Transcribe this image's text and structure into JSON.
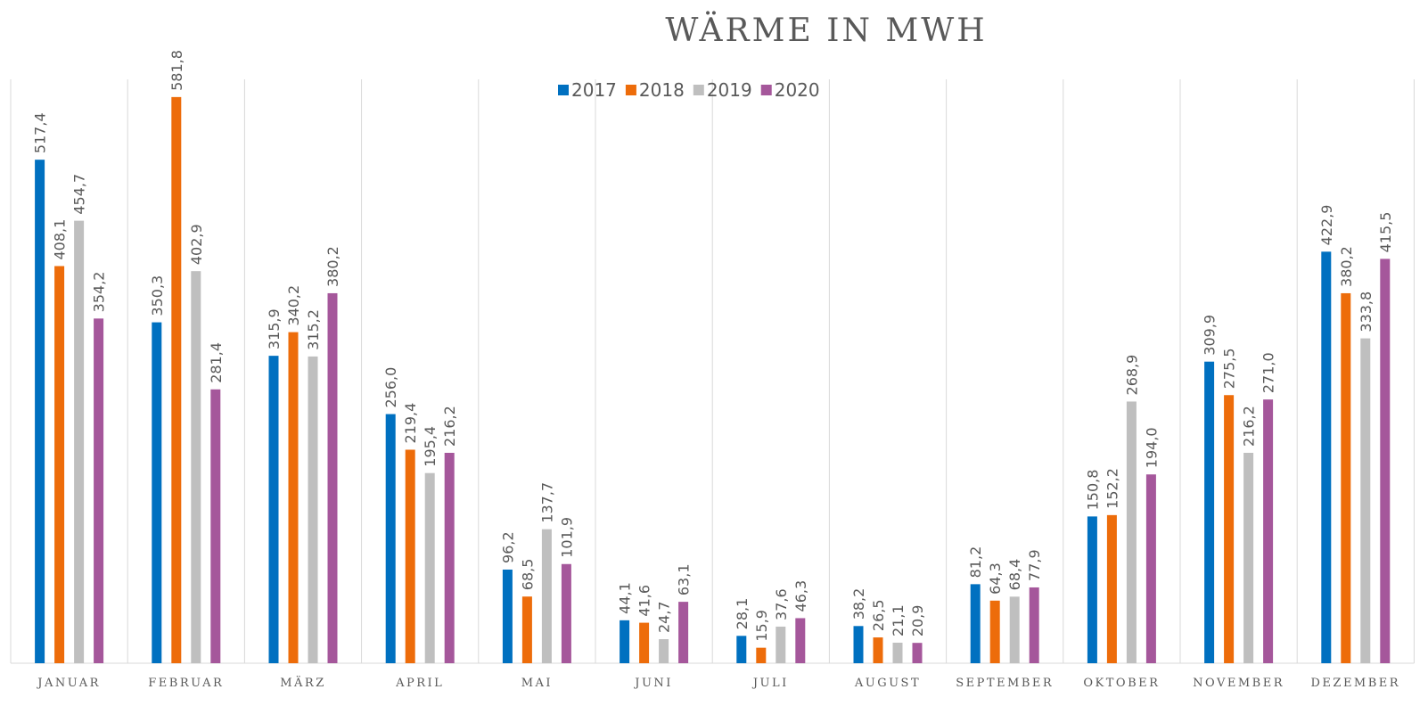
{
  "chart_data": {
    "type": "bar",
    "title": "WÄRME IN MWH",
    "categories": [
      "JANUAR",
      "FEBRUAR",
      "MÄRZ",
      "APRIL",
      "MAI",
      "JUNI",
      "JULI",
      "AUGUST",
      "SEPTEMBER",
      "OKTOBER",
      "NOVEMBER",
      "DEZEMBER"
    ],
    "series": [
      {
        "name": "2017",
        "color": "#0070c0",
        "values": [
          517.4,
          350.3,
          315.9,
          256.0,
          96.2,
          44.1,
          28.1,
          38.2,
          81.2,
          150.8,
          309.9,
          422.9
        ],
        "value_labels": [
          "517,4",
          "350,3",
          "315,9",
          "256,0",
          "96,2",
          "44,1",
          "28,1",
          "38,2",
          "81,2",
          "150,8",
          "309,9",
          "422,9"
        ]
      },
      {
        "name": "2018",
        "color": "#ed6c0a",
        "values": [
          408.1,
          581.8,
          340.2,
          219.4,
          68.5,
          41.6,
          15.9,
          26.5,
          64.3,
          152.2,
          275.5,
          380.2
        ],
        "value_labels": [
          "408,1",
          "581,8",
          "340,2",
          "219,4",
          "68,5",
          "41,6",
          "15,9",
          "26,5",
          "64,3",
          "152,2",
          "275,5",
          "380,2"
        ]
      },
      {
        "name": "2019",
        "color": "#bfbfbf",
        "values": [
          454.7,
          402.9,
          315.2,
          195.4,
          137.7,
          24.7,
          37.6,
          21.1,
          68.4,
          268.9,
          216.2,
          333.8
        ],
        "value_labels": [
          "454,7",
          "402,9",
          "315,2",
          "195,4",
          "137,7",
          "24,7",
          "37,6",
          "21,1",
          "68,4",
          "268,9",
          "216,2",
          "333,8"
        ]
      },
      {
        "name": "2020",
        "color": "#a5579b",
        "values": [
          354.2,
          281.4,
          380.2,
          216.2,
          101.9,
          63.1,
          46.3,
          20.9,
          77.9,
          194.0,
          271.0,
          415.5
        ],
        "value_labels": [
          "354,2",
          "281,4",
          "380,2",
          "216,2",
          "101,9",
          "63,1",
          "46,3",
          "20,9",
          "77,9",
          "194,0",
          "271,0",
          "415,5"
        ]
      }
    ],
    "ylim": [
      0,
      600
    ],
    "legend": "top"
  }
}
